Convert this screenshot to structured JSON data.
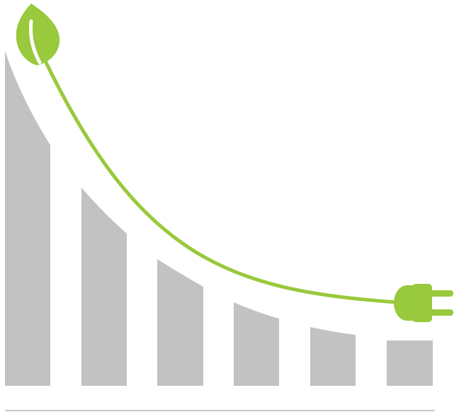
{
  "illustration": {
    "bar_levels_descending": [
      1.0,
      0.59,
      0.375,
      0.245,
      0.175,
      0.13
    ],
    "colors": {
      "bars": "#c2c2c2",
      "accent": "#99c93c",
      "baseline": "#c7c7c7",
      "background": "#ffffff"
    },
    "icons": [
      "leaf-icon",
      "power-plug-icon"
    ]
  }
}
